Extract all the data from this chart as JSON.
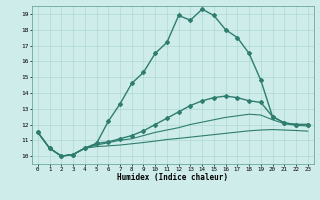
{
  "xlabel": "Humidex (Indice chaleur)",
  "bg_color": "#ceecea",
  "grid_color": "#afd8d4",
  "line_color": "#2e7d6e",
  "xlim_min": -0.5,
  "xlim_max": 23.5,
  "ylim_min": 9.5,
  "ylim_max": 19.5,
  "xtick_vals": [
    0,
    1,
    2,
    3,
    4,
    5,
    6,
    7,
    8,
    9,
    10,
    11,
    12,
    13,
    14,
    15,
    16,
    17,
    18,
    19,
    20,
    21,
    22,
    23
  ],
  "ytick_vals": [
    10,
    11,
    12,
    13,
    14,
    15,
    16,
    17,
    18,
    19
  ],
  "line1_x": [
    0,
    1,
    2,
    3,
    4,
    5,
    6,
    7,
    8,
    9,
    10,
    11,
    12,
    13,
    14,
    15,
    16,
    17,
    18,
    19,
    20,
    21,
    22,
    23
  ],
  "line1_y": [
    11.5,
    10.5,
    10.0,
    10.1,
    10.5,
    10.8,
    12.2,
    13.3,
    14.6,
    15.3,
    16.5,
    17.2,
    18.9,
    18.6,
    19.3,
    18.9,
    18.0,
    17.5,
    16.5,
    14.8,
    12.5,
    12.1,
    12.0,
    12.0
  ],
  "line2_x": [
    0,
    1,
    2,
    3,
    4,
    5,
    6,
    7,
    8,
    9,
    10,
    11,
    12,
    13,
    14,
    15,
    16,
    17,
    18,
    19,
    20,
    21,
    22,
    23
  ],
  "line2_y": [
    11.5,
    10.5,
    10.0,
    10.1,
    10.5,
    10.8,
    10.9,
    11.1,
    11.3,
    11.6,
    12.0,
    12.4,
    12.8,
    13.2,
    13.5,
    13.7,
    13.8,
    13.7,
    13.5,
    13.4,
    12.5,
    12.1,
    12.0,
    12.0
  ],
  "line3_x": [
    0,
    1,
    2,
    3,
    4,
    5,
    6,
    7,
    8,
    9,
    10,
    11,
    12,
    13,
    14,
    15,
    16,
    17,
    18,
    19,
    20,
    21,
    22,
    23
  ],
  "line3_y": [
    11.5,
    10.5,
    10.0,
    10.1,
    10.5,
    10.7,
    10.85,
    11.0,
    11.1,
    11.3,
    11.5,
    11.65,
    11.8,
    12.0,
    12.15,
    12.3,
    12.45,
    12.55,
    12.65,
    12.6,
    12.3,
    12.05,
    11.95,
    11.9
  ],
  "line4_x": [
    0,
    1,
    2,
    3,
    4,
    5,
    6,
    7,
    8,
    9,
    10,
    11,
    12,
    13,
    14,
    15,
    16,
    17,
    18,
    19,
    20,
    21,
    22,
    23
  ],
  "line4_y": [
    11.5,
    10.5,
    10.0,
    10.1,
    10.5,
    10.6,
    10.65,
    10.7,
    10.78,
    10.86,
    10.95,
    11.05,
    11.12,
    11.2,
    11.28,
    11.36,
    11.44,
    11.52,
    11.6,
    11.65,
    11.68,
    11.65,
    11.62,
    11.58
  ]
}
